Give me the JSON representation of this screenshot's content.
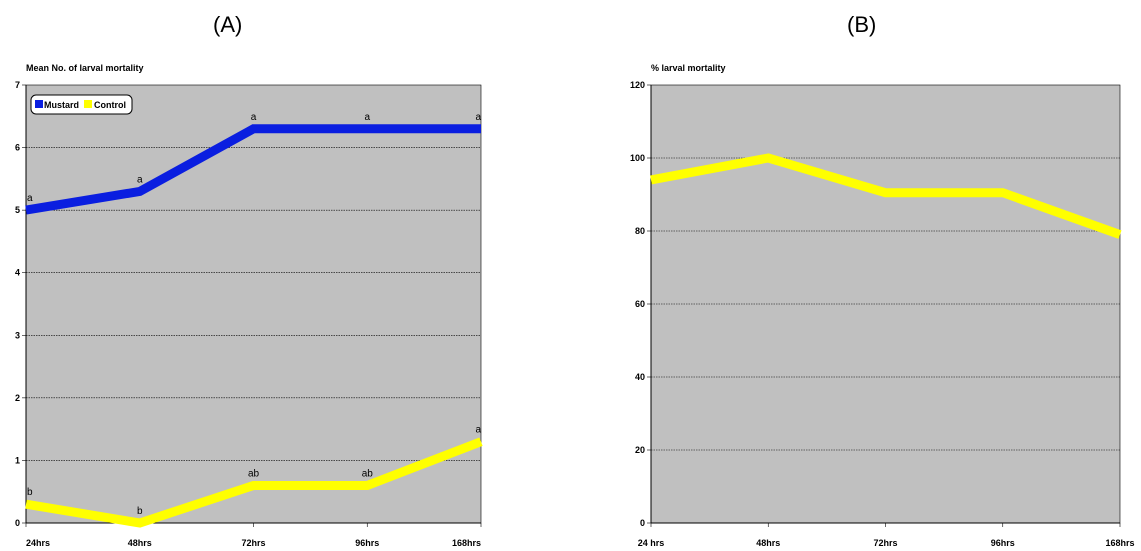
{
  "panels": {
    "a_label": "(A)",
    "b_label": "(B)"
  },
  "colors": {
    "mustard": "#0a1ee0",
    "control": "#ffff00",
    "plot_bg": "#c0c0c0"
  },
  "chart_data": [
    {
      "type": "line",
      "ylabel": "Mean No. of larval mortality",
      "categories": [
        "24hrs",
        "48hrs",
        "72hrs",
        "96hrs",
        "168hrs"
      ],
      "ylim": [
        0,
        7
      ],
      "yticks": [
        0,
        1,
        2,
        3,
        4,
        5,
        6,
        7
      ],
      "grid": true,
      "legend": "top-left",
      "series": [
        {
          "name": "Mustard",
          "color": "#0a1ee0",
          "values": [
            5.0,
            5.3,
            6.3,
            6.3,
            6.3
          ],
          "labels": [
            "a",
            "a",
            "a",
            "a",
            "a"
          ]
        },
        {
          "name": "Control",
          "color": "#ffff00",
          "values": [
            0.3,
            0.0,
            0.6,
            0.6,
            1.3
          ],
          "labels": [
            "b",
            "b",
            "ab",
            "ab",
            "a"
          ]
        }
      ]
    },
    {
      "type": "line",
      "ylabel": "% larval mortality",
      "categories": [
        "24 hrs",
        "48hrs",
        "72hrs",
        "96hrs",
        "168hrs"
      ],
      "ylim": [
        0,
        120
      ],
      "yticks": [
        0,
        20,
        40,
        60,
        80,
        100,
        120
      ],
      "grid": true,
      "series": [
        {
          "color": "#ffff00",
          "values": [
            94,
            100,
            90.5,
            90.5,
            79
          ]
        }
      ]
    }
  ]
}
